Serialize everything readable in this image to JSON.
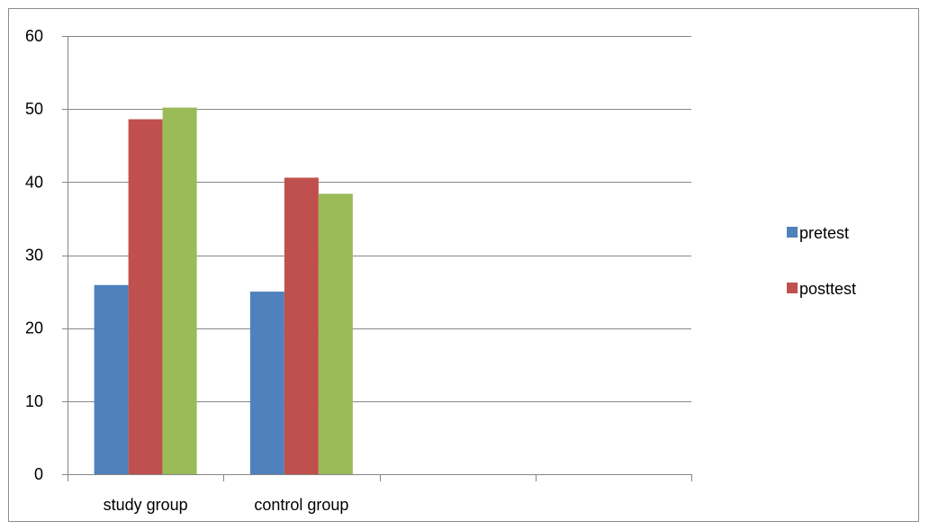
{
  "chart_data": {
    "type": "bar",
    "title": "",
    "xlabel": "",
    "ylabel": "",
    "categories": [
      "study group",
      "control group",
      "",
      ""
    ],
    "series": [
      {
        "name": "pretest",
        "color": "#4F81BD",
        "values": [
          25.9,
          25.0,
          null,
          null
        ]
      },
      {
        "name": "posttest",
        "color": "#C0504D",
        "values": [
          48.6,
          40.6,
          null,
          null
        ]
      },
      {
        "name": "",
        "color": "#9BBB59",
        "values": [
          50.2,
          38.4,
          null,
          null
        ]
      }
    ],
    "ylim": [
      0,
      60
    ],
    "yticks": [
      "0",
      "10",
      "20",
      "30",
      "40",
      "50",
      "60"
    ],
    "grid": true,
    "legend_position": "right"
  }
}
